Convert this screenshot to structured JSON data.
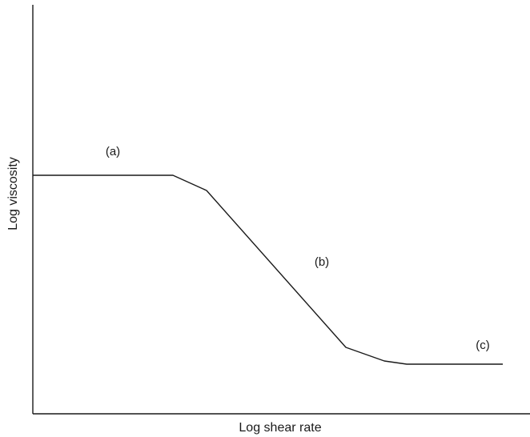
{
  "diagram": {
    "xlabel": "Log shear rate",
    "ylabel": "Log viscosity",
    "regions": [
      {
        "id": "a",
        "label": "(a)"
      },
      {
        "id": "b",
        "label": "(b)"
      },
      {
        "id": "c",
        "label": "(c)"
      }
    ]
  }
}
